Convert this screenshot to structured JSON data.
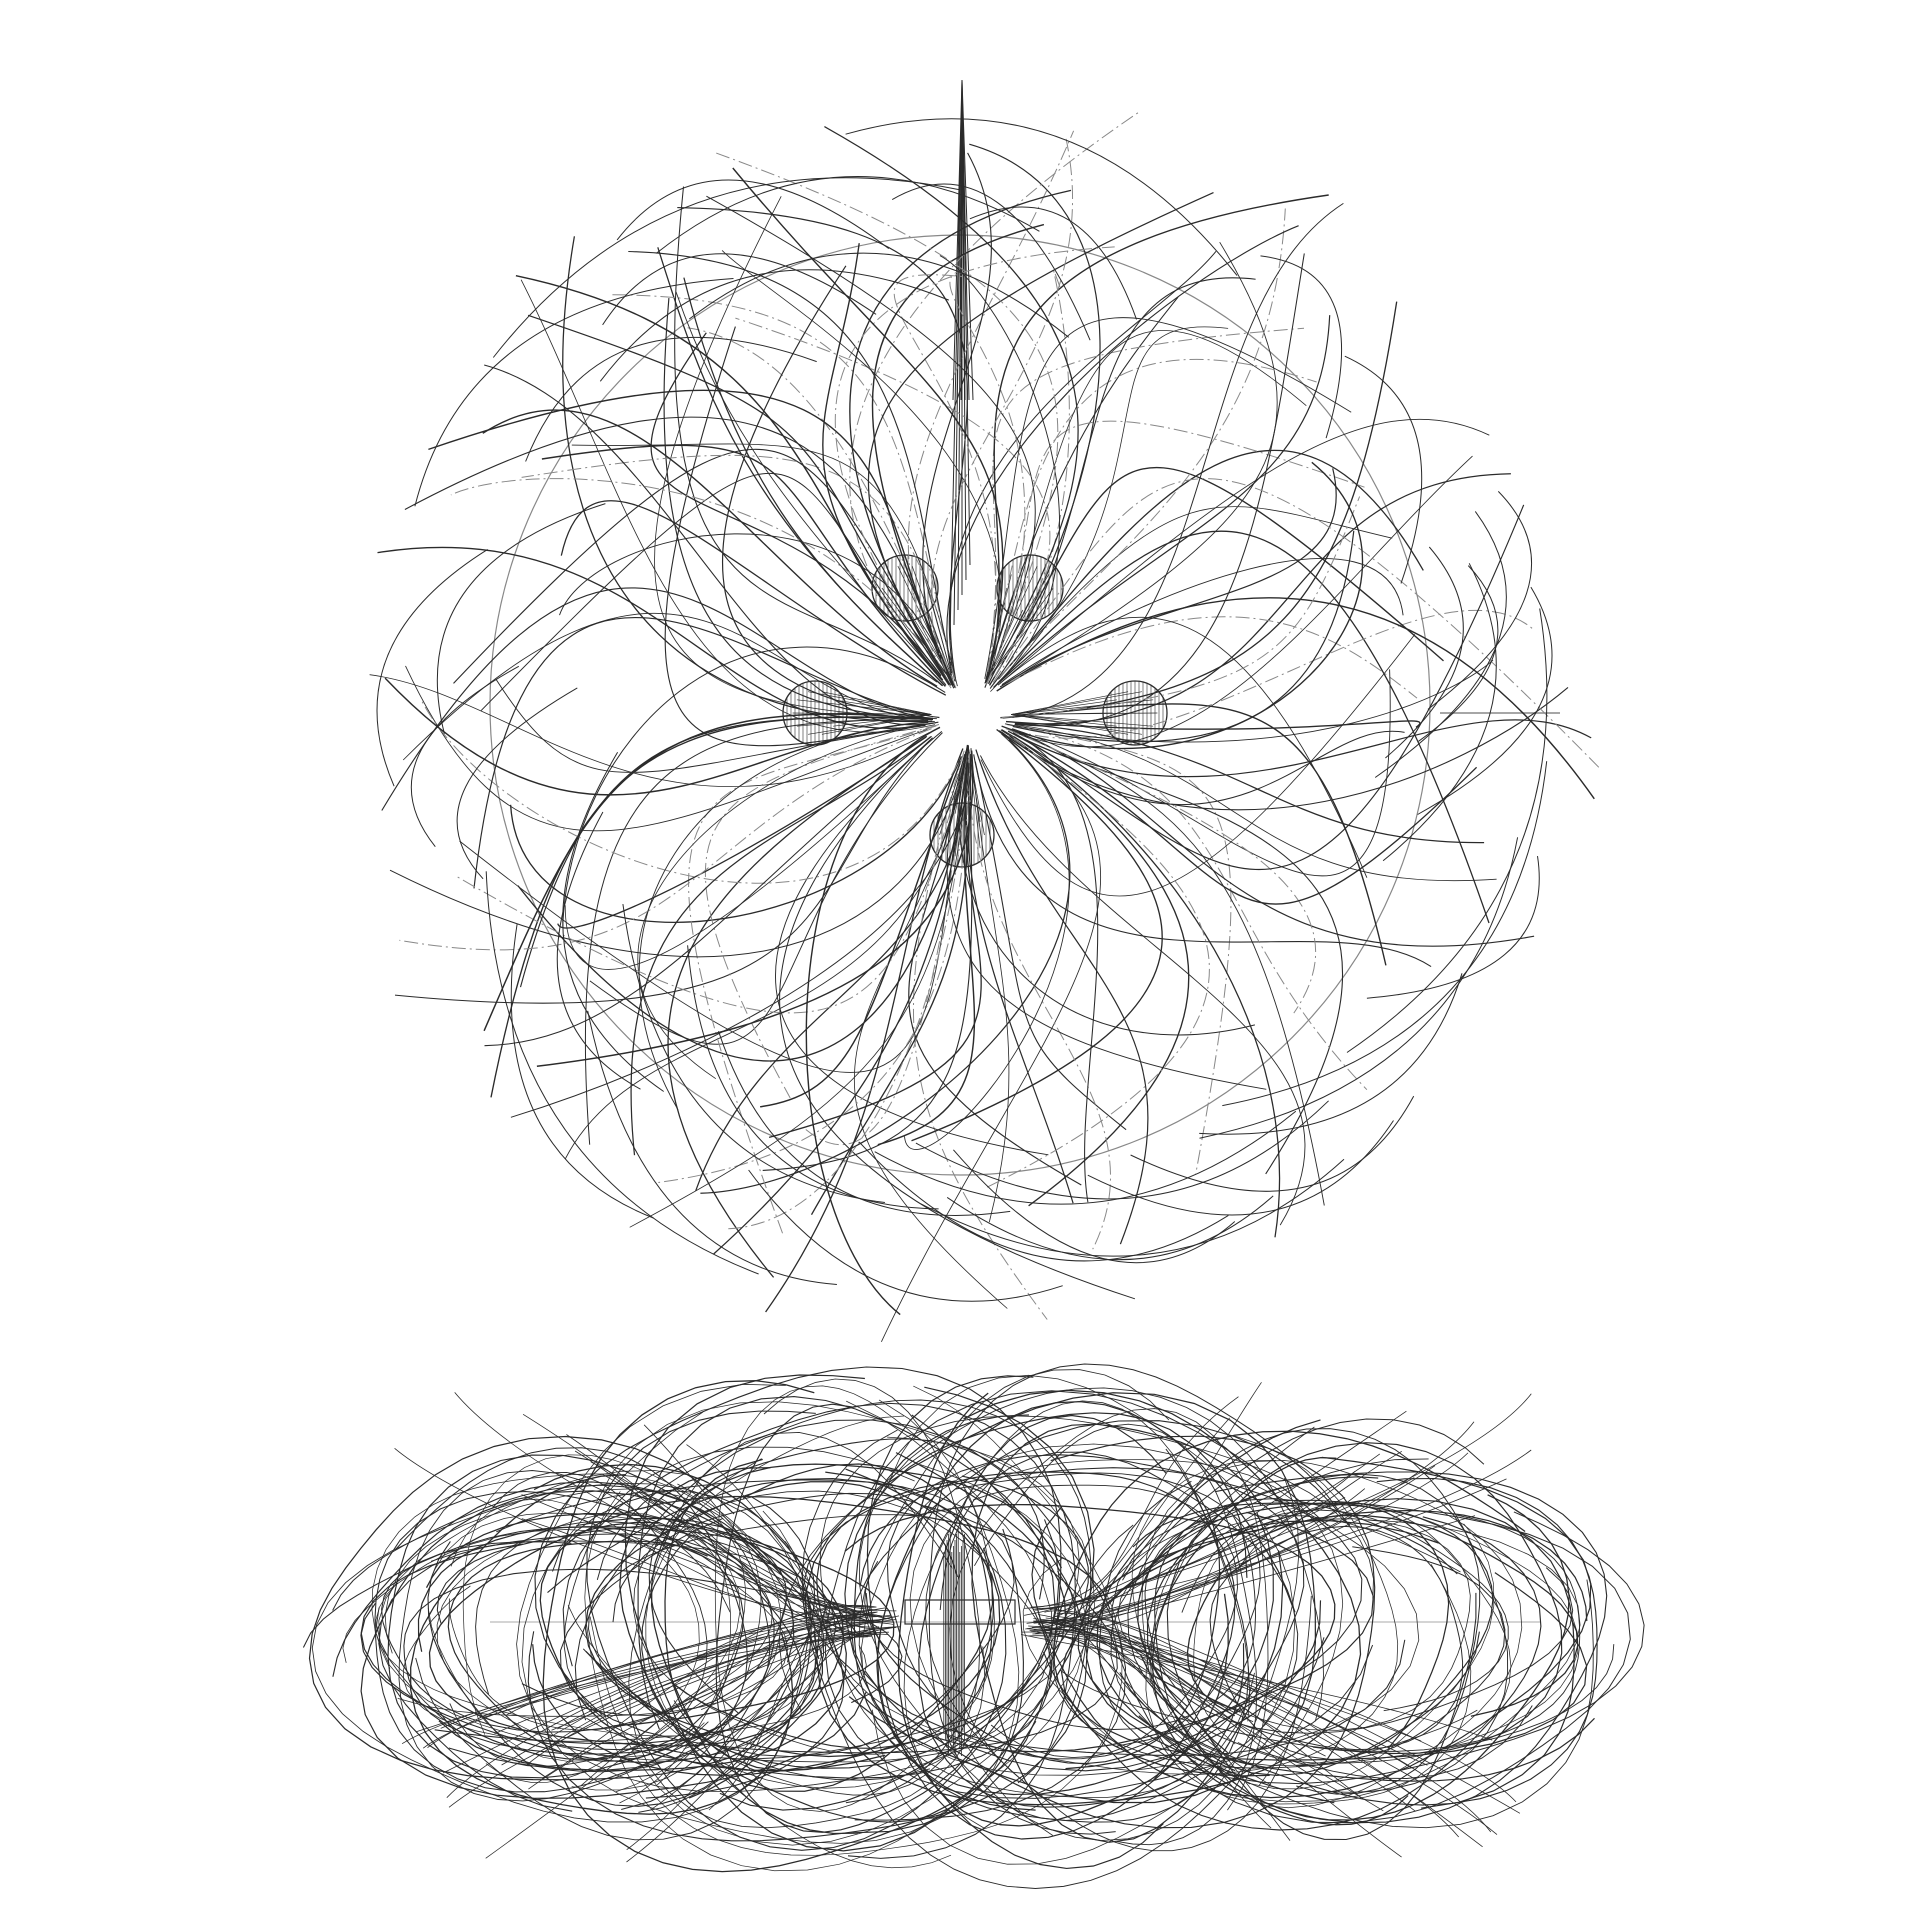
{
  "drawing": {
    "background": "#ffffff",
    "stroke_color": "#2b2b2b",
    "guide_color": "#888888",
    "views": [
      {
        "name": "plan-view",
        "petals": 5,
        "emitter_discs": 5,
        "field_line_count": 170
      },
      {
        "name": "elevation-view",
        "lobe_count": 4,
        "field_line_count": 150
      }
    ]
  }
}
